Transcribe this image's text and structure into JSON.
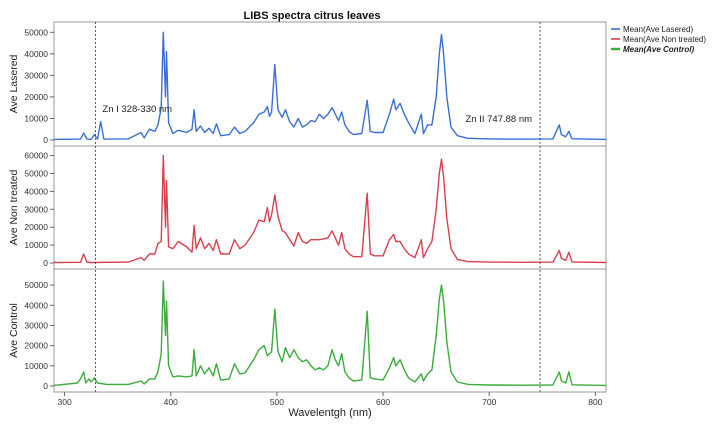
{
  "chart_data": {
    "type": "line",
    "title": "LIBS spectra citrus leaves",
    "xlabel": "Wavelentgh (nm)",
    "xlim": [
      290,
      810
    ],
    "xticks": [
      300,
      400,
      500,
      600,
      700,
      800
    ],
    "legend_position": "top-right",
    "grid": false,
    "reference_lines": [
      {
        "x": 329,
        "label": "Zn I 328-330 nm"
      },
      {
        "x": 747.88,
        "label": "Zn II 747.88 nm"
      }
    ],
    "panels": [
      {
        "ylabel": "Ave Lasered",
        "series_name": "Mean(Ave Lasered)",
        "color": "#3a6fd8",
        "ylim": [
          0,
          52000
        ],
        "yticks": [
          0,
          10000,
          20000,
          30000,
          40000,
          50000
        ],
        "points": [
          [
            290,
            300
          ],
          [
            315,
            400
          ],
          [
            318,
            3200
          ],
          [
            321,
            400
          ],
          [
            325,
            300
          ],
          [
            328,
            2500
          ],
          [
            331,
            400
          ],
          [
            334,
            8500
          ],
          [
            337,
            400
          ],
          [
            360,
            500
          ],
          [
            372,
            3500
          ],
          [
            375,
            1000
          ],
          [
            380,
            5000
          ],
          [
            385,
            4000
          ],
          [
            388,
            7000
          ],
          [
            391,
            15000
          ],
          [
            393,
            50000
          ],
          [
            395,
            20000
          ],
          [
            396,
            41000
          ],
          [
            398,
            8000
          ],
          [
            402,
            3000
          ],
          [
            407,
            4500
          ],
          [
            415,
            3500
          ],
          [
            420,
            5000
          ],
          [
            422,
            14000
          ],
          [
            424,
            4000
          ],
          [
            428,
            6500
          ],
          [
            432,
            3500
          ],
          [
            436,
            5500
          ],
          [
            440,
            3000
          ],
          [
            443,
            7500
          ],
          [
            447,
            2000
          ],
          [
            455,
            2500
          ],
          [
            460,
            6000
          ],
          [
            465,
            3000
          ],
          [
            470,
            4000
          ],
          [
            478,
            8000
          ],
          [
            483,
            12000
          ],
          [
            488,
            13000
          ],
          [
            491,
            15500
          ],
          [
            493,
            11000
          ],
          [
            495,
            13000
          ],
          [
            498,
            35000
          ],
          [
            501,
            14000
          ],
          [
            505,
            10500
          ],
          [
            508,
            14000
          ],
          [
            512,
            8500
          ],
          [
            516,
            6000
          ],
          [
            520,
            10000
          ],
          [
            524,
            6000
          ],
          [
            528,
            7000
          ],
          [
            532,
            9000
          ],
          [
            536,
            8500
          ],
          [
            540,
            12000
          ],
          [
            544,
            10000
          ],
          [
            548,
            12000
          ],
          [
            552,
            15000
          ],
          [
            555,
            12000
          ],
          [
            558,
            9000
          ],
          [
            561,
            13000
          ],
          [
            564,
            7000
          ],
          [
            568,
            4000
          ],
          [
            572,
            2500
          ],
          [
            580,
            3000
          ],
          [
            585,
            18500
          ],
          [
            588,
            4000
          ],
          [
            592,
            3500
          ],
          [
            600,
            3500
          ],
          [
            606,
            12000
          ],
          [
            610,
            19000
          ],
          [
            612,
            14000
          ],
          [
            616,
            17000
          ],
          [
            620,
            12000
          ],
          [
            624,
            8000
          ],
          [
            630,
            3000
          ],
          [
            636,
            12000
          ],
          [
            638,
            3000
          ],
          [
            642,
            7000
          ],
          [
            646,
            7000
          ],
          [
            650,
            20000
          ],
          [
            653,
            40000
          ],
          [
            655,
            49000
          ],
          [
            657,
            40000
          ],
          [
            660,
            20000
          ],
          [
            664,
            6000
          ],
          [
            670,
            2000
          ],
          [
            680,
            800
          ],
          [
            700,
            500
          ],
          [
            730,
            400
          ],
          [
            760,
            500
          ],
          [
            766,
            7000
          ],
          [
            768,
            2500
          ],
          [
            772,
            1500
          ],
          [
            775,
            4000
          ],
          [
            778,
            600
          ],
          [
            810,
            300
          ]
        ]
      },
      {
        "ylabel": "Ave Non treated",
        "series_name": "Mean(Ave Non treated)",
        "color": "#d8404e",
        "ylim": [
          0,
          62000
        ],
        "yticks": [
          0,
          10000,
          20000,
          30000,
          40000,
          50000,
          60000
        ],
        "points": [
          [
            290,
            300
          ],
          [
            315,
            400
          ],
          [
            318,
            5000
          ],
          [
            321,
            500
          ],
          [
            325,
            300
          ],
          [
            360,
            500
          ],
          [
            372,
            3000
          ],
          [
            375,
            1500
          ],
          [
            380,
            5000
          ],
          [
            385,
            5000
          ],
          [
            388,
            11000
          ],
          [
            391,
            12000
          ],
          [
            393,
            60000
          ],
          [
            395,
            20000
          ],
          [
            396,
            46000
          ],
          [
            398,
            9000
          ],
          [
            402,
            8000
          ],
          [
            407,
            12000
          ],
          [
            415,
            9000
          ],
          [
            420,
            6000
          ],
          [
            422,
            21000
          ],
          [
            424,
            8000
          ],
          [
            428,
            14000
          ],
          [
            432,
            8000
          ],
          [
            436,
            11000
          ],
          [
            440,
            7000
          ],
          [
            443,
            13000
          ],
          [
            447,
            5000
          ],
          [
            455,
            5000
          ],
          [
            460,
            13000
          ],
          [
            465,
            8000
          ],
          [
            470,
            10000
          ],
          [
            478,
            17000
          ],
          [
            483,
            24000
          ],
          [
            488,
            23000
          ],
          [
            491,
            31000
          ],
          [
            493,
            23000
          ],
          [
            495,
            27000
          ],
          [
            498,
            38000
          ],
          [
            501,
            26000
          ],
          [
            505,
            18000
          ],
          [
            508,
            17000
          ],
          [
            512,
            13000
          ],
          [
            516,
            9500
          ],
          [
            520,
            17000
          ],
          [
            524,
            12000
          ],
          [
            528,
            11000
          ],
          [
            532,
            13000
          ],
          [
            536,
            13000
          ],
          [
            540,
            13000
          ],
          [
            544,
            13500
          ],
          [
            548,
            14000
          ],
          [
            552,
            18000
          ],
          [
            555,
            14000
          ],
          [
            558,
            10000
          ],
          [
            561,
            17000
          ],
          [
            564,
            8000
          ],
          [
            568,
            5000
          ],
          [
            572,
            3500
          ],
          [
            580,
            3500
          ],
          [
            585,
            39000
          ],
          [
            588,
            5000
          ],
          [
            592,
            4000
          ],
          [
            600,
            4000
          ],
          [
            606,
            13000
          ],
          [
            610,
            16000
          ],
          [
            612,
            12000
          ],
          [
            616,
            12000
          ],
          [
            620,
            8000
          ],
          [
            624,
            5000
          ],
          [
            630,
            3000
          ],
          [
            636,
            13000
          ],
          [
            638,
            3000
          ],
          [
            642,
            8000
          ],
          [
            646,
            12000
          ],
          [
            650,
            30000
          ],
          [
            653,
            50000
          ],
          [
            655,
            58000
          ],
          [
            657,
            48000
          ],
          [
            660,
            25000
          ],
          [
            664,
            8000
          ],
          [
            670,
            2000
          ],
          [
            680,
            800
          ],
          [
            700,
            500
          ],
          [
            730,
            400
          ],
          [
            760,
            500
          ],
          [
            766,
            7000
          ],
          [
            768,
            2500
          ],
          [
            772,
            1500
          ],
          [
            775,
            6000
          ],
          [
            778,
            600
          ],
          [
            810,
            300
          ]
        ]
      },
      {
        "ylabel": "Ave Control",
        "series_name": "Mean(Ave Control)",
        "color": "#3cac3c",
        "ylim": [
          0,
          55000
        ],
        "yticks": [
          0,
          10000,
          20000,
          30000,
          40000,
          50000
        ],
        "points": [
          [
            290,
            300
          ],
          [
            312,
            1500
          ],
          [
            315,
            3500
          ],
          [
            318,
            7000
          ],
          [
            320,
            1500
          ],
          [
            323,
            3500
          ],
          [
            325,
            2000
          ],
          [
            328,
            4000
          ],
          [
            331,
            1500
          ],
          [
            340,
            800
          ],
          [
            360,
            800
          ],
          [
            372,
            2500
          ],
          [
            375,
            1000
          ],
          [
            380,
            3500
          ],
          [
            385,
            3500
          ],
          [
            388,
            7000
          ],
          [
            391,
            16000
          ],
          [
            393,
            52000
          ],
          [
            395,
            25000
          ],
          [
            396,
            42000
          ],
          [
            398,
            10000
          ],
          [
            402,
            4500
          ],
          [
            407,
            5000
          ],
          [
            415,
            4500
          ],
          [
            420,
            5000
          ],
          [
            422,
            18000
          ],
          [
            424,
            5000
          ],
          [
            428,
            10000
          ],
          [
            432,
            6000
          ],
          [
            436,
            9000
          ],
          [
            440,
            5000
          ],
          [
            443,
            11000
          ],
          [
            447,
            3000
          ],
          [
            455,
            3500
          ],
          [
            460,
            11000
          ],
          [
            465,
            6000
          ],
          [
            470,
            6500
          ],
          [
            478,
            13000
          ],
          [
            483,
            18000
          ],
          [
            488,
            20000
          ],
          [
            491,
            15000
          ],
          [
            495,
            17000
          ],
          [
            498,
            38000
          ],
          [
            501,
            17000
          ],
          [
            505,
            12000
          ],
          [
            508,
            19000
          ],
          [
            512,
            14000
          ],
          [
            516,
            18000
          ],
          [
            520,
            14000
          ],
          [
            524,
            12000
          ],
          [
            528,
            13000
          ],
          [
            532,
            10000
          ],
          [
            536,
            8000
          ],
          [
            540,
            9000
          ],
          [
            544,
            8000
          ],
          [
            548,
            10000
          ],
          [
            552,
            18000
          ],
          [
            555,
            13000
          ],
          [
            558,
            10000
          ],
          [
            561,
            16000
          ],
          [
            564,
            7000
          ],
          [
            568,
            4000
          ],
          [
            572,
            2500
          ],
          [
            580,
            3000
          ],
          [
            585,
            37000
          ],
          [
            588,
            4000
          ],
          [
            592,
            3500
          ],
          [
            600,
            3000
          ],
          [
            606,
            9000
          ],
          [
            610,
            14000
          ],
          [
            612,
            10000
          ],
          [
            616,
            13000
          ],
          [
            620,
            8000
          ],
          [
            624,
            4000
          ],
          [
            630,
            2000
          ],
          [
            636,
            6000
          ],
          [
            638,
            2500
          ],
          [
            642,
            6000
          ],
          [
            646,
            8000
          ],
          [
            650,
            25000
          ],
          [
            653,
            43000
          ],
          [
            655,
            50000
          ],
          [
            657,
            42000
          ],
          [
            660,
            22000
          ],
          [
            664,
            7000
          ],
          [
            670,
            2000
          ],
          [
            680,
            800
          ],
          [
            700,
            500
          ],
          [
            730,
            400
          ],
          [
            760,
            500
          ],
          [
            766,
            7000
          ],
          [
            768,
            2500
          ],
          [
            772,
            1500
          ],
          [
            775,
            7000
          ],
          [
            778,
            600
          ],
          [
            810,
            300
          ]
        ]
      }
    ]
  }
}
